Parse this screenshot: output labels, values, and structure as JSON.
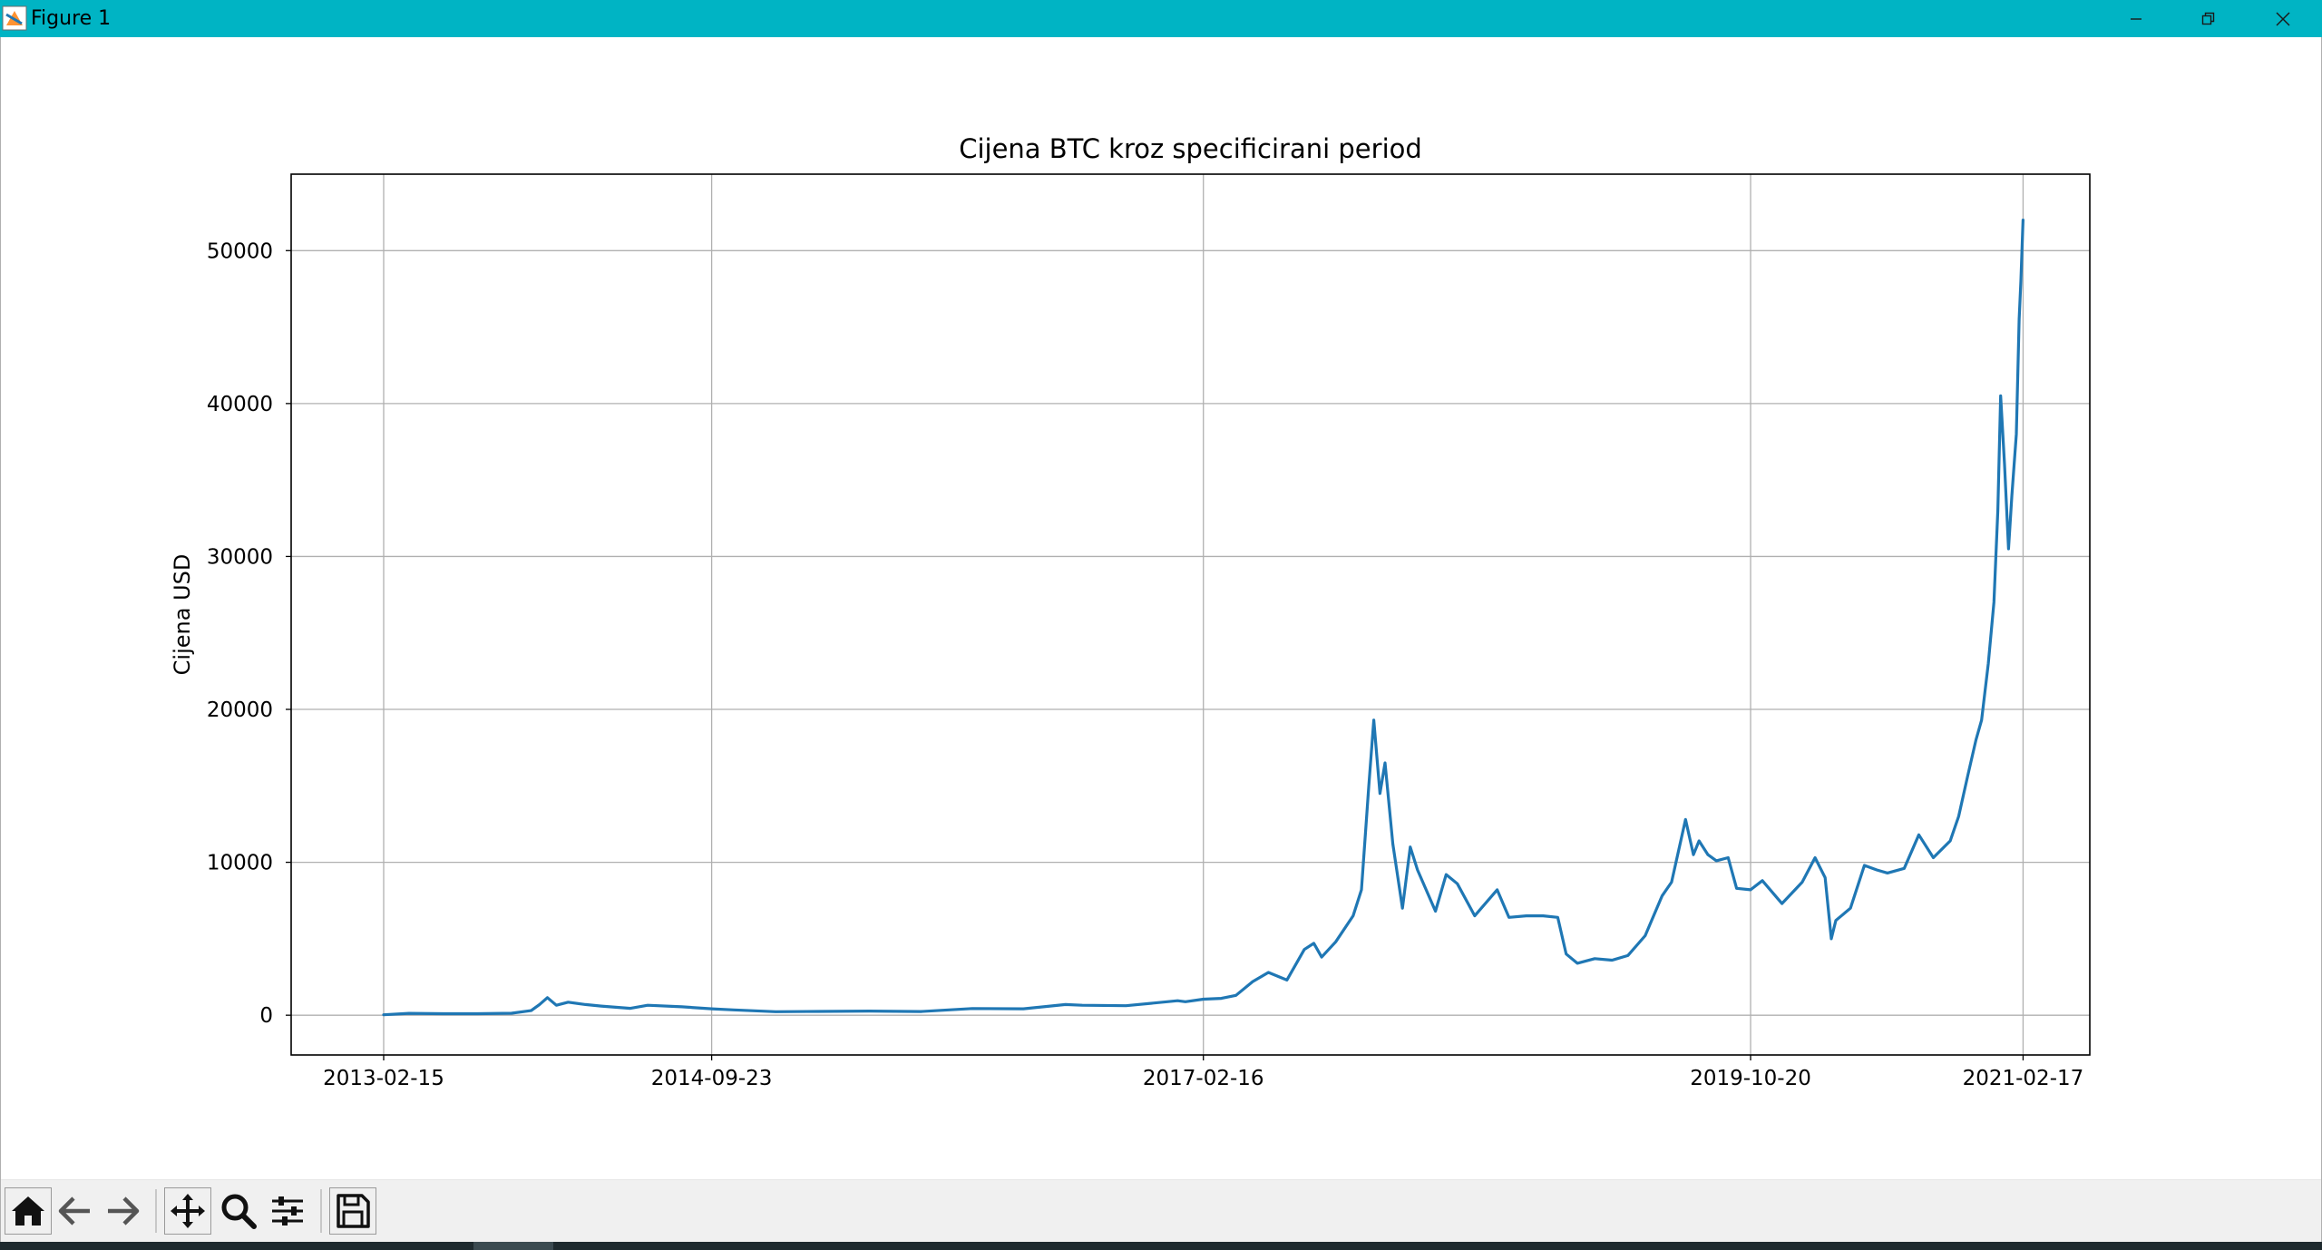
{
  "window": {
    "title": "Figure 1",
    "controls": [
      "minimize-icon",
      "restore-icon",
      "close-icon"
    ],
    "titlebar_color": "#00b4c4"
  },
  "toolbar": {
    "buttons": [
      "home-icon",
      "back-arrow-icon",
      "forward-arrow-icon",
      "pan-icon",
      "zoom-icon",
      "configure-subplots-icon",
      "save-icon"
    ]
  },
  "chart_data": {
    "type": "line",
    "title": "Cijena BTC kroz specificirani period",
    "xlabel": "",
    "ylabel": "Cijena USD",
    "x_type": "date",
    "xlim": [
      "2012-09-03",
      "2021-06-16"
    ],
    "ylim": [
      -2600,
      55000
    ],
    "grid": true,
    "line_color": "#1f77b4",
    "x_ticks": [
      "2013-02-15",
      "2014-09-23",
      "2017-02-16",
      "2019-10-20",
      "2021-02-17"
    ],
    "y_ticks": [
      0,
      10000,
      20000,
      30000,
      40000,
      50000
    ],
    "series": [
      {
        "x": [
          "2013-02-15",
          "2013-04-01",
          "2013-06-01",
          "2013-08-01",
          "2013-10-01",
          "2013-11-05",
          "2013-11-20",
          "2013-12-04",
          "2013-12-20",
          "2014-01-10",
          "2014-02-10",
          "2014-03-10",
          "2014-05-01",
          "2014-06-01",
          "2014-08-01",
          "2014-09-23",
          "2014-11-01",
          "2015-01-15",
          "2015-04-01",
          "2015-07-01",
          "2015-10-01",
          "2016-01-01",
          "2016-04-01",
          "2016-06-15",
          "2016-07-15",
          "2016-10-01",
          "2017-01-01",
          "2017-01-15",
          "2017-02-16",
          "2017-03-20",
          "2017-04-15",
          "2017-05-15",
          "2017-06-12",
          "2017-07-15",
          "2017-08-15",
          "2017-09-01",
          "2017-09-15",
          "2017-10-10",
          "2017-11-10",
          "2017-11-25",
          "2017-12-08",
          "2017-12-17",
          "2017-12-28",
          "2018-01-06",
          "2018-01-20",
          "2018-02-06",
          "2018-02-20",
          "2018-03-05",
          "2018-04-06",
          "2018-04-25",
          "2018-05-15",
          "2018-06-15",
          "2018-07-25",
          "2018-08-15",
          "2018-09-15",
          "2018-10-15",
          "2018-11-10",
          "2018-11-25",
          "2018-12-15",
          "2019-01-15",
          "2019-02-15",
          "2019-03-15",
          "2019-04-15",
          "2019-05-15",
          "2019-06-01",
          "2019-06-26",
          "2019-07-10",
          "2019-07-20",
          "2019-08-05",
          "2019-08-20",
          "2019-09-10",
          "2019-09-25",
          "2019-10-20",
          "2019-11-10",
          "2019-12-15",
          "2020-01-20",
          "2020-02-12",
          "2020-03-01",
          "2020-03-12",
          "2020-03-20",
          "2020-04-15",
          "2020-05-10",
          "2020-06-01",
          "2020-06-20",
          "2020-07-20",
          "2020-08-15",
          "2020-09-10",
          "2020-10-10",
          "2020-10-25",
          "2020-11-10",
          "2020-11-25",
          "2020-12-05",
          "2020-12-17",
          "2020-12-27",
          "2021-01-03",
          "2021-01-08",
          "2021-01-15",
          "2021-01-22",
          "2021-01-28",
          "2021-02-05",
          "2021-02-10",
          "2021-02-13",
          "2021-02-17"
        ],
        "y": [
          25,
          120,
          100,
          100,
          130,
          300,
          700,
          1150,
          650,
          850,
          700,
          600,
          450,
          650,
          550,
          420,
          350,
          230,
          250,
          270,
          240,
          440,
          420,
          700,
          650,
          620,
          950,
          880,
          1050,
          1100,
          1300,
          2200,
          2800,
          2300,
          4300,
          4700,
          3800,
          4800,
          6500,
          8200,
          15000,
          19300,
          14500,
          16500,
          11200,
          7000,
          11000,
          9500,
          6800,
          9200,
          8600,
          6500,
          8200,
          6400,
          6500,
          6500,
          6400,
          4000,
          3400,
          3700,
          3600,
          3900,
          5200,
          7800,
          8700,
          12800,
          10500,
          11400,
          10500,
          10100,
          10300,
          8300,
          8200,
          8800,
          7300,
          8700,
          10300,
          9000,
          5000,
          6200,
          7000,
          9800,
          9500,
          9300,
          9600,
          11800,
          10300,
          11400,
          13000,
          15600,
          18000,
          19300,
          23000,
          27000,
          33000,
          40500,
          36000,
          30500,
          34000,
          38000,
          45500,
          48000,
          52000
        ]
      }
    ]
  }
}
